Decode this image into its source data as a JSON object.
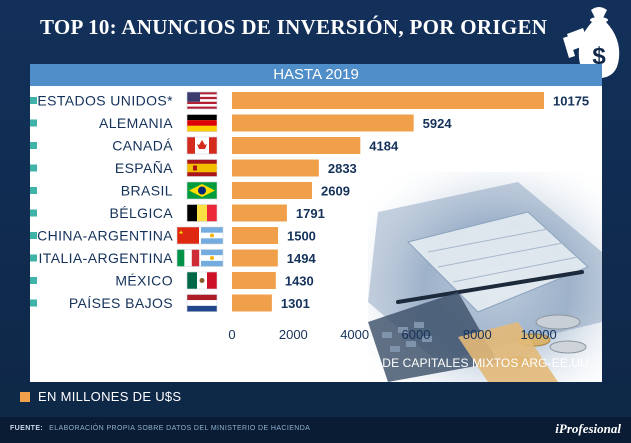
{
  "title": "TOP 10: ANUNCIOS DE INVERSIÓN, POR ORIGEN",
  "chart_data": {
    "type": "bar",
    "orientation": "horizontal",
    "subtitle": "HASTA 2019",
    "categories": [
      "ESTADOS UNIDOS*",
      "ALEMANIA",
      "CANADÁ",
      "ESPAÑA",
      "BRASIL",
      "BÉLGICA",
      "CHINA-ARGENTINA",
      "ITALIA-ARGENTINA",
      "MÉXICO",
      "PAÍSES BAJOS"
    ],
    "values": [
      10175,
      5924,
      4184,
      2833,
      2609,
      1791,
      1500,
      1494,
      1430,
      1301
    ],
    "value_labels": [
      "10175",
      "5924",
      "4184",
      "2833",
      "2609",
      "1791",
      "1500",
      "1494",
      "1430",
      "1301"
    ],
    "xlim": [
      0,
      10175
    ],
    "xticks": [
      0,
      2000,
      4000,
      6000,
      8000,
      10000
    ],
    "xtick_labels": [
      "0",
      "2000",
      "4000",
      "6000",
      "8000",
      "10000"
    ],
    "bar_color": "#f0a04b",
    "grid": false
  },
  "flags": [
    "us-flag",
    "germany-flag",
    "canada-flag",
    "spain-flag",
    "brazil-flag",
    "belgium-flag",
    "china-argentina-flags",
    "italy-argentina-flags",
    "mexico-flag",
    "netherlands-flag"
  ],
  "footnote": "*INCLUYE U$S1.495 MILLONES DE INVERSIONES DE CAPITALES MIXTOS ARG-EE.UU.",
  "legend_label": "EN MILLONES DE U$S",
  "source_label": "FUENTE:",
  "source_text": "ELABORACIÓN PROPIA SOBRE DATOS DEL MINISTERIO DE HACIENDA",
  "brand": "iProfesional",
  "colors": {
    "background": "#0f2748",
    "header_band": "#4f8ec9",
    "bar": "#f0a04b",
    "bullet": "#3fb3a8"
  }
}
